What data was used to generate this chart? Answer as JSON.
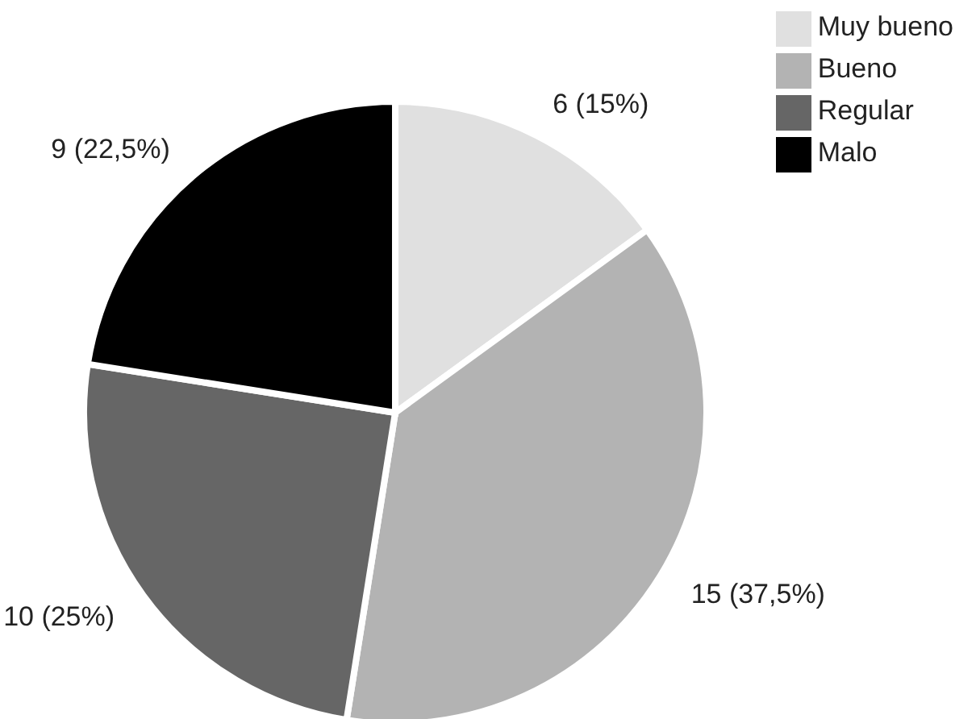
{
  "chart_data": {
    "type": "pie",
    "categories": [
      "Muy bueno",
      "Bueno",
      "Regular",
      "Malo"
    ],
    "values": [
      6,
      15,
      10,
      9
    ],
    "colors": [
      "#e0e0e0",
      "#b3b3b3",
      "#666666",
      "#000000"
    ],
    "value_labels": [
      "6 (15%)",
      "15 (37,5%)",
      "10 (25%)",
      "9 (22,5%)"
    ],
    "legend": "top right"
  }
}
